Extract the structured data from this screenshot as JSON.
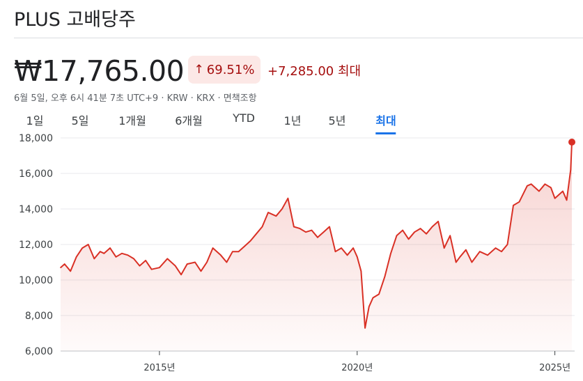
{
  "header": {
    "title": "PLUS 고배당주",
    "price": "₩17,765.00",
    "change_percent": "69.51%",
    "change_direction_icon": "arrow-up-icon",
    "change_amount": "+7,285.00 최대",
    "meta": "6월 5일, 오후 6시 41분 7초 UTC+9 · KRW · KRX · 면책조항"
  },
  "tabs": [
    {
      "label": "1일"
    },
    {
      "label": "5일"
    },
    {
      "label": "1개월"
    },
    {
      "label": "6개월"
    },
    {
      "label": "YTD"
    },
    {
      "label": "1년"
    },
    {
      "label": "5년"
    },
    {
      "label": "최대"
    }
  ],
  "active_tab": "최대",
  "colors": {
    "line": "#d93025",
    "accent": "#1a73e8",
    "badge_bg": "#fce8e6",
    "badge_text": "#a50e0e"
  },
  "chart_data": {
    "type": "area",
    "x_unit": "year",
    "x": [
      2012.5,
      2012.6,
      2012.75,
      2012.9,
      2013.05,
      2013.2,
      2013.35,
      2013.5,
      2013.6,
      2013.75,
      2013.9,
      2014.05,
      2014.2,
      2014.35,
      2014.5,
      2014.65,
      2014.8,
      2015.0,
      2015.2,
      2015.4,
      2015.55,
      2015.7,
      2015.9,
      2016.05,
      2016.2,
      2016.35,
      2016.55,
      2016.7,
      2016.85,
      2017.0,
      2017.15,
      2017.3,
      2017.45,
      2017.6,
      2017.75,
      2017.95,
      2018.1,
      2018.25,
      2018.4,
      2018.55,
      2018.7,
      2018.85,
      2019.0,
      2019.15,
      2019.3,
      2019.45,
      2019.6,
      2019.75,
      2019.9,
      2020.0,
      2020.1,
      2020.2,
      2020.3,
      2020.4,
      2020.55,
      2020.7,
      2020.85,
      2021.0,
      2021.15,
      2021.3,
      2021.45,
      2021.6,
      2021.75,
      2021.9,
      2022.05,
      2022.2,
      2022.35,
      2022.5,
      2022.6,
      2022.75,
      2022.9,
      2023.1,
      2023.3,
      2023.5,
      2023.65,
      2023.8,
      2023.95,
      2024.1,
      2024.3,
      2024.4,
      2024.6,
      2024.75,
      2024.9,
      2025.0,
      2025.1,
      2025.2,
      2025.3,
      2025.4,
      2025.43
    ],
    "y": [
      10700,
      10900,
      10500,
      11300,
      11800,
      12000,
      11200,
      11600,
      11500,
      11800,
      11300,
      11500,
      11400,
      11200,
      10800,
      11100,
      10600,
      10700,
      11200,
      10800,
      10300,
      10900,
      11000,
      10500,
      11000,
      11800,
      11400,
      11000,
      11600,
      11600,
      11900,
      12200,
      12600,
      13000,
      13800,
      13600,
      14000,
      14600,
      13000,
      12900,
      12700,
      12800,
      12400,
      12700,
      13000,
      11600,
      11800,
      11400,
      11800,
      11300,
      10500,
      7300,
      8500,
      9000,
      9200,
      10200,
      11500,
      12500,
      12800,
      12300,
      12700,
      12900,
      12600,
      13000,
      13300,
      11800,
      12500,
      11000,
      11300,
      11700,
      11000,
      11600,
      11400,
      11800,
      11600,
      12000,
      14200,
      14400,
      15300,
      15400,
      15000,
      15400,
      15200,
      14600,
      14800,
      15000,
      14500,
      16200,
      17765
    ],
    "ylim": [
      6000,
      18000
    ],
    "y_ticks": [
      "6,000",
      "8,000",
      "10,000",
      "12,000",
      "14,000",
      "16,000",
      "18,000"
    ],
    "y_tick_values": [
      6000,
      8000,
      10000,
      12000,
      14000,
      16000,
      18000
    ],
    "x_ticks": [
      "2015년",
      "2020년",
      "2025년"
    ],
    "x_tick_values": [
      2015,
      2020,
      2025
    ],
    "xlim": [
      2012.5,
      2025.5
    ],
    "grid": true,
    "last_point_marker": true
  }
}
